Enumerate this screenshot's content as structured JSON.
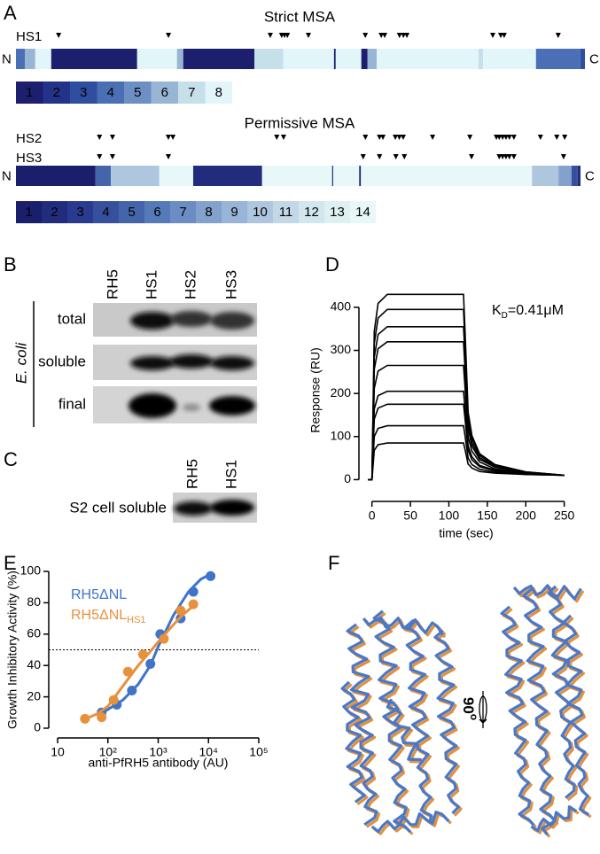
{
  "panel_labels": [
    "A",
    "B",
    "C",
    "D",
    "E",
    "F"
  ],
  "panel_a": {
    "strict": {
      "title": "Strict MSA",
      "terminal_n": "N",
      "terminal_c": "C",
      "tracks": [
        {
          "label": "HS1",
          "positions": [
            7.5,
            26.8,
            44.7,
            46.7,
            47.2,
            47.7,
            51.4,
            61.4,
            64.2,
            64.8,
            67.4,
            68.1,
            68.7,
            83.8,
            85.2,
            85.8,
            95.3
          ]
        }
      ],
      "segments": [
        [
          0,
          1.6,
          4
        ],
        [
          1.6,
          3.4,
          6
        ],
        [
          3.4,
          6.2,
          8
        ],
        [
          6.2,
          21.3,
          1
        ],
        [
          21.3,
          28.3,
          8
        ],
        [
          28.3,
          29.4,
          6
        ],
        [
          29.4,
          41.9,
          1
        ],
        [
          41.9,
          47.0,
          7
        ],
        [
          47.0,
          55.9,
          8
        ],
        [
          55.9,
          56.2,
          1
        ],
        [
          56.2,
          60.7,
          8
        ],
        [
          60.7,
          61.8,
          1
        ],
        [
          61.8,
          63.4,
          6
        ],
        [
          63.4,
          81.3,
          8
        ],
        [
          81.3,
          82.1,
          7
        ],
        [
          82.1,
          91.4,
          8
        ],
        [
          91.4,
          99.2,
          4
        ],
        [
          99.2,
          100,
          3
        ]
      ],
      "legend": {
        "levels": [
          "1",
          "2",
          "3",
          "4",
          "5",
          "6",
          "7",
          "8"
        ],
        "colors": [
          "#1b1f6e",
          "#23338a",
          "#2f4ea0",
          "#4a6fb5",
          "#6d8fc4",
          "#98b6d4",
          "#c6e0ea",
          "#e2f5f8"
        ]
      }
    },
    "permissive": {
      "title": "Permissive MSA",
      "terminal_n": "N",
      "terminal_c": "C",
      "tracks": [
        {
          "label": "HS2",
          "positions": [
            14.8,
            17.1,
            27.0,
            27.8,
            46.2,
            47.4,
            61.9,
            64.4,
            65.0,
            67.2,
            67.9,
            68.6,
            73.8,
            80.4,
            85.1,
            85.6,
            86.2,
            86.8,
            87.4,
            88.2,
            92.9,
            95.8,
            97.2
          ]
        },
        {
          "label": "HS3",
          "positions": [
            14.8,
            17.1,
            27.0,
            61.5,
            64.4,
            67.3,
            68.8,
            80.7,
            85.6,
            86.2,
            86.8,
            87.4,
            88.2,
            97.0
          ]
        }
      ],
      "segments": [
        [
          0,
          14.1,
          1
        ],
        [
          14.1,
          16.8,
          5
        ],
        [
          16.8,
          25.4,
          10
        ],
        [
          25.4,
          31.4,
          14
        ],
        [
          31.4,
          43.6,
          2
        ],
        [
          43.6,
          56.0,
          14
        ],
        [
          56.0,
          56.2,
          3
        ],
        [
          56.2,
          60.8,
          14
        ],
        [
          60.8,
          61.1,
          1
        ],
        [
          61.1,
          91.4,
          14
        ],
        [
          91.4,
          96.1,
          10
        ],
        [
          96.1,
          98.4,
          8
        ],
        [
          98.4,
          99.5,
          4
        ],
        [
          99.5,
          100,
          2
        ]
      ],
      "legend": {
        "levels": [
          "1",
          "2",
          "3",
          "4",
          "5",
          "6",
          "7",
          "8",
          "9",
          "10",
          "11",
          "12",
          "13",
          "14"
        ],
        "colors": [
          "#1a1f6b",
          "#222c7d",
          "#2a3a8e",
          "#36509e",
          "#4565ab",
          "#5679b8",
          "#6b8dc3",
          "#82a2cd",
          "#98b4d6",
          "#aec7de",
          "#c2d8e6",
          "#d2e6ed",
          "#dff0f3",
          "#e8f7f8"
        ]
      }
    }
  },
  "panel_b": {
    "lanes": [
      "RH5",
      "HS1",
      "HS2",
      "HS3"
    ],
    "rows": [
      "total",
      "soluble",
      "final"
    ],
    "organism": "E. coli"
  },
  "panel_c": {
    "lanes": [
      "RH5",
      "HS1"
    ],
    "row": "S2 cell soluble"
  },
  "chart_data": [
    {
      "type": "line",
      "x_label": "time (sec)",
      "y_label": "Response (RU)",
      "annotation": {
        "main": "K",
        "sub": "D",
        "rest": "=0.41μM"
      },
      "x": [
        -5,
        0,
        3,
        8,
        20,
        60,
        119,
        121,
        125,
        130,
        140,
        160,
        200,
        250
      ],
      "series": [
        {
          "color": "#000000",
          "values": [
            0,
            0,
            68,
            81,
            85,
            85,
            85,
            70,
            36,
            27,
            19,
            15,
            12,
            10
          ]
        },
        {
          "color": "#000000",
          "values": [
            0,
            0,
            100,
            119,
            125,
            125,
            125,
            102,
            50,
            35,
            24,
            17,
            12,
            10
          ]
        },
        {
          "color": "#000000",
          "values": [
            0,
            0,
            140,
            166,
            175,
            175,
            175,
            142,
            68,
            46,
            30,
            20,
            13,
            10
          ]
        },
        {
          "color": "#000000",
          "values": [
            0,
            0,
            164,
            195,
            205,
            205,
            205,
            166,
            78,
            53,
            33,
            22,
            14,
            10
          ]
        },
        {
          "color": "#000000",
          "values": [
            0,
            0,
            212,
            252,
            265,
            265,
            265,
            214,
            99,
            66,
            41,
            25,
            15,
            10
          ]
        },
        {
          "color": "#000000",
          "values": [
            0,
            0,
            256,
            304,
            320,
            320,
            320,
            258,
            119,
            78,
            47,
            29,
            16,
            10
          ]
        },
        {
          "color": "#000000",
          "values": [
            0,
            0,
            284,
            337,
            355,
            355,
            355,
            286,
            131,
            86,
            51,
            31,
            17,
            10
          ]
        },
        {
          "color": "#000000",
          "values": [
            0,
            0,
            316,
            375,
            395,
            395,
            395,
            318,
            145,
            95,
            56,
            33,
            18,
            10
          ]
        },
        {
          "color": "#000000",
          "values": [
            0,
            0,
            344,
            409,
            430,
            430,
            430,
            346,
            157,
            102,
            60,
            35,
            18,
            10
          ]
        }
      ],
      "xlim": [
        -10,
        255
      ],
      "xticks": [
        0,
        50,
        100,
        150,
        200,
        250
      ],
      "ylim": [
        -30,
        445
      ],
      "yticks": [
        0,
        100,
        200,
        300,
        400
      ]
    },
    {
      "type": "scatter",
      "log_x": true,
      "x_label": "anti-PfRH5 antibody (AU)",
      "y_label": "Growth Inhibitory Activity (%)",
      "reference_line": 50,
      "series": [
        {
          "name": "RH5ΔNL",
          "color": "#3f74c9",
          "x": [
            75,
            150,
            300,
            700,
            1100,
            2800,
            5000,
            11000
          ],
          "values": [
            10,
            15,
            24,
            41,
            60,
            70,
            87,
            97
          ],
          "fit": {
            "x": [
              70,
              100,
              200,
              400,
              700,
              1000,
              2000,
              4000,
              7000,
              12000
            ],
            "values": [
              9,
              12,
              18,
              28,
              40,
              52,
              72,
              87,
              95,
              99
            ]
          }
        },
        {
          "name": "RH5ΔNL",
          "name_sub": "HS1",
          "color": "#e8913d",
          "x": [
            35,
            75,
            130,
            250,
            500,
            1300,
            2800,
            5000
          ],
          "values": [
            6,
            7,
            18,
            36,
            47,
            57,
            75,
            79
          ],
          "fit": {
            "x": [
              30,
              60,
              100,
              200,
              400,
              700,
              1000,
              2000,
              3000,
              5000
            ],
            "values": [
              5,
              9,
              14,
              27,
              40,
              49,
              55,
              66,
              72,
              78
            ]
          }
        }
      ],
      "xlim": [
        10,
        100000
      ],
      "xticks": [
        10,
        {
          "value": 100,
          "label": "10²"
        },
        {
          "value": 1000,
          "label": "10³"
        },
        {
          "value": 10000,
          "label": "10⁴"
        },
        {
          "value": 100000,
          "label": "10⁵"
        }
      ],
      "ylim": [
        0,
        100
      ],
      "yticks": [
        0,
        20,
        40,
        60,
        80,
        100
      ]
    }
  ],
  "panel_f": {
    "rotation_label": "90",
    "rotation_sup": "o"
  }
}
